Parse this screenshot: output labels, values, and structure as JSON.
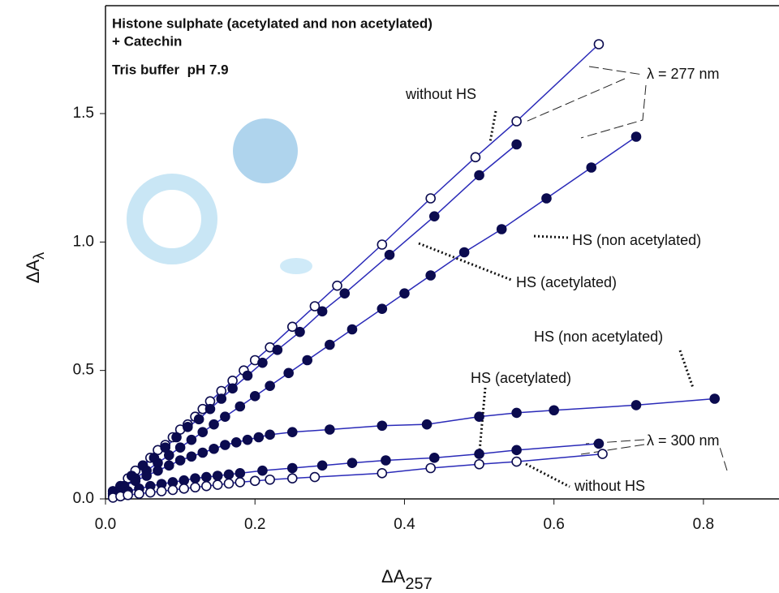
{
  "chart_data": {
    "type": "line",
    "title_lines": [
      "Histone sulphate (acetylated and non acetylated)",
      "+ Catechin"
    ],
    "subtitle": "Tris buffer  pH 7.9",
    "x_label": {
      "text": "ΔA",
      "subscript": "257"
    },
    "y_label": {
      "text": "ΔA",
      "subscript": "λ"
    },
    "xlim": [
      0,
      0.9
    ],
    "ylim": [
      0,
      1.92
    ],
    "xticks": [
      {
        "value": 0,
        "label": "0.0"
      },
      0.2,
      0.4,
      0.6,
      0.8
    ],
    "yticks": [
      {
        "value": 0,
        "label": "0.0"
      },
      0.5,
      {
        "value": 1,
        "label": "1.0"
      },
      1.5
    ],
    "line_color": "#2a2ab8",
    "marker_color": "#0b0b4f",
    "series": [
      {
        "marker": "open",
        "x": [
          0.01,
          0.02,
          0.03,
          0.04,
          0.05,
          0.06,
          0.07,
          0.08,
          0.09,
          0.1,
          0.11,
          0.12,
          0.13,
          0.14,
          0.155,
          0.17,
          0.185,
          0.2,
          0.22,
          0.25,
          0.28,
          0.31,
          0.37,
          0.435,
          0.495,
          0.55,
          0.66
        ],
        "values": [
          0.03,
          0.05,
          0.08,
          0.11,
          0.13,
          0.16,
          0.19,
          0.21,
          0.24,
          0.27,
          0.29,
          0.32,
          0.35,
          0.38,
          0.42,
          0.46,
          0.5,
          0.54,
          0.59,
          0.67,
          0.75,
          0.83,
          0.99,
          1.17,
          1.33,
          1.47,
          1.77
        ]
      },
      {
        "marker": "filled",
        "x": [
          0.01,
          0.02,
          0.035,
          0.05,
          0.065,
          0.08,
          0.095,
          0.11,
          0.125,
          0.14,
          0.155,
          0.17,
          0.19,
          0.21,
          0.23,
          0.26,
          0.29,
          0.32,
          0.38,
          0.44,
          0.5,
          0.55
        ],
        "values": [
          0.03,
          0.05,
          0.09,
          0.13,
          0.16,
          0.2,
          0.24,
          0.28,
          0.31,
          0.35,
          0.39,
          0.43,
          0.48,
          0.53,
          0.58,
          0.65,
          0.73,
          0.8,
          0.95,
          1.1,
          1.26,
          1.38
        ]
      },
      {
        "marker": "filled",
        "x": [
          0.01,
          0.025,
          0.04,
          0.055,
          0.07,
          0.085,
          0.1,
          0.115,
          0.13,
          0.145,
          0.16,
          0.18,
          0.2,
          0.22,
          0.245,
          0.27,
          0.3,
          0.33,
          0.37,
          0.4,
          0.435,
          0.48,
          0.53,
          0.59,
          0.65,
          0.71
        ],
        "values": [
          0.02,
          0.05,
          0.08,
          0.11,
          0.14,
          0.17,
          0.2,
          0.23,
          0.26,
          0.29,
          0.32,
          0.36,
          0.4,
          0.44,
          0.49,
          0.54,
          0.6,
          0.66,
          0.74,
          0.8,
          0.87,
          0.96,
          1.05,
          1.17,
          1.29,
          1.41
        ]
      },
      {
        "marker": "filled",
        "x": [
          0.01,
          0.025,
          0.04,
          0.055,
          0.07,
          0.085,
          0.1,
          0.115,
          0.13,
          0.145,
          0.16,
          0.175,
          0.19,
          0.205,
          0.22,
          0.25,
          0.3,
          0.37,
          0.43,
          0.5,
          0.55,
          0.6,
          0.71,
          0.815
        ],
        "values": [
          0.02,
          0.05,
          0.07,
          0.09,
          0.11,
          0.13,
          0.15,
          0.165,
          0.18,
          0.195,
          0.21,
          0.22,
          0.23,
          0.24,
          0.25,
          0.26,
          0.27,
          0.285,
          0.29,
          0.32,
          0.335,
          0.345,
          0.365,
          0.39
        ]
      },
      {
        "marker": "filled",
        "x": [
          0.01,
          0.02,
          0.03,
          0.045,
          0.06,
          0.075,
          0.09,
          0.105,
          0.12,
          0.135,
          0.15,
          0.165,
          0.18,
          0.21,
          0.25,
          0.29,
          0.33,
          0.375,
          0.44,
          0.5,
          0.55,
          0.66
        ],
        "values": [
          0.01,
          0.02,
          0.03,
          0.04,
          0.05,
          0.058,
          0.065,
          0.072,
          0.08,
          0.085,
          0.09,
          0.095,
          0.1,
          0.11,
          0.12,
          0.13,
          0.14,
          0.15,
          0.16,
          0.175,
          0.19,
          0.215
        ]
      },
      {
        "marker": "open",
        "x": [
          0.01,
          0.02,
          0.03,
          0.045,
          0.06,
          0.075,
          0.09,
          0.105,
          0.12,
          0.135,
          0.15,
          0.165,
          0.18,
          0.2,
          0.22,
          0.25,
          0.28,
          0.37,
          0.435,
          0.5,
          0.55,
          0.665
        ],
        "values": [
          0.005,
          0.01,
          0.015,
          0.02,
          0.025,
          0.03,
          0.035,
          0.04,
          0.045,
          0.05,
          0.055,
          0.06,
          0.065,
          0.07,
          0.075,
          0.08,
          0.085,
          0.1,
          0.12,
          0.135,
          0.145,
          0.175
        ]
      }
    ],
    "annotations": [
      "without HS",
      "λ = 277 nm",
      "HS (non acetylated)",
      "HS (acetylated)",
      "HS (non acetylated)",
      "HS (acetylated)",
      "λ = 300 nm",
      "without HS"
    ]
  }
}
